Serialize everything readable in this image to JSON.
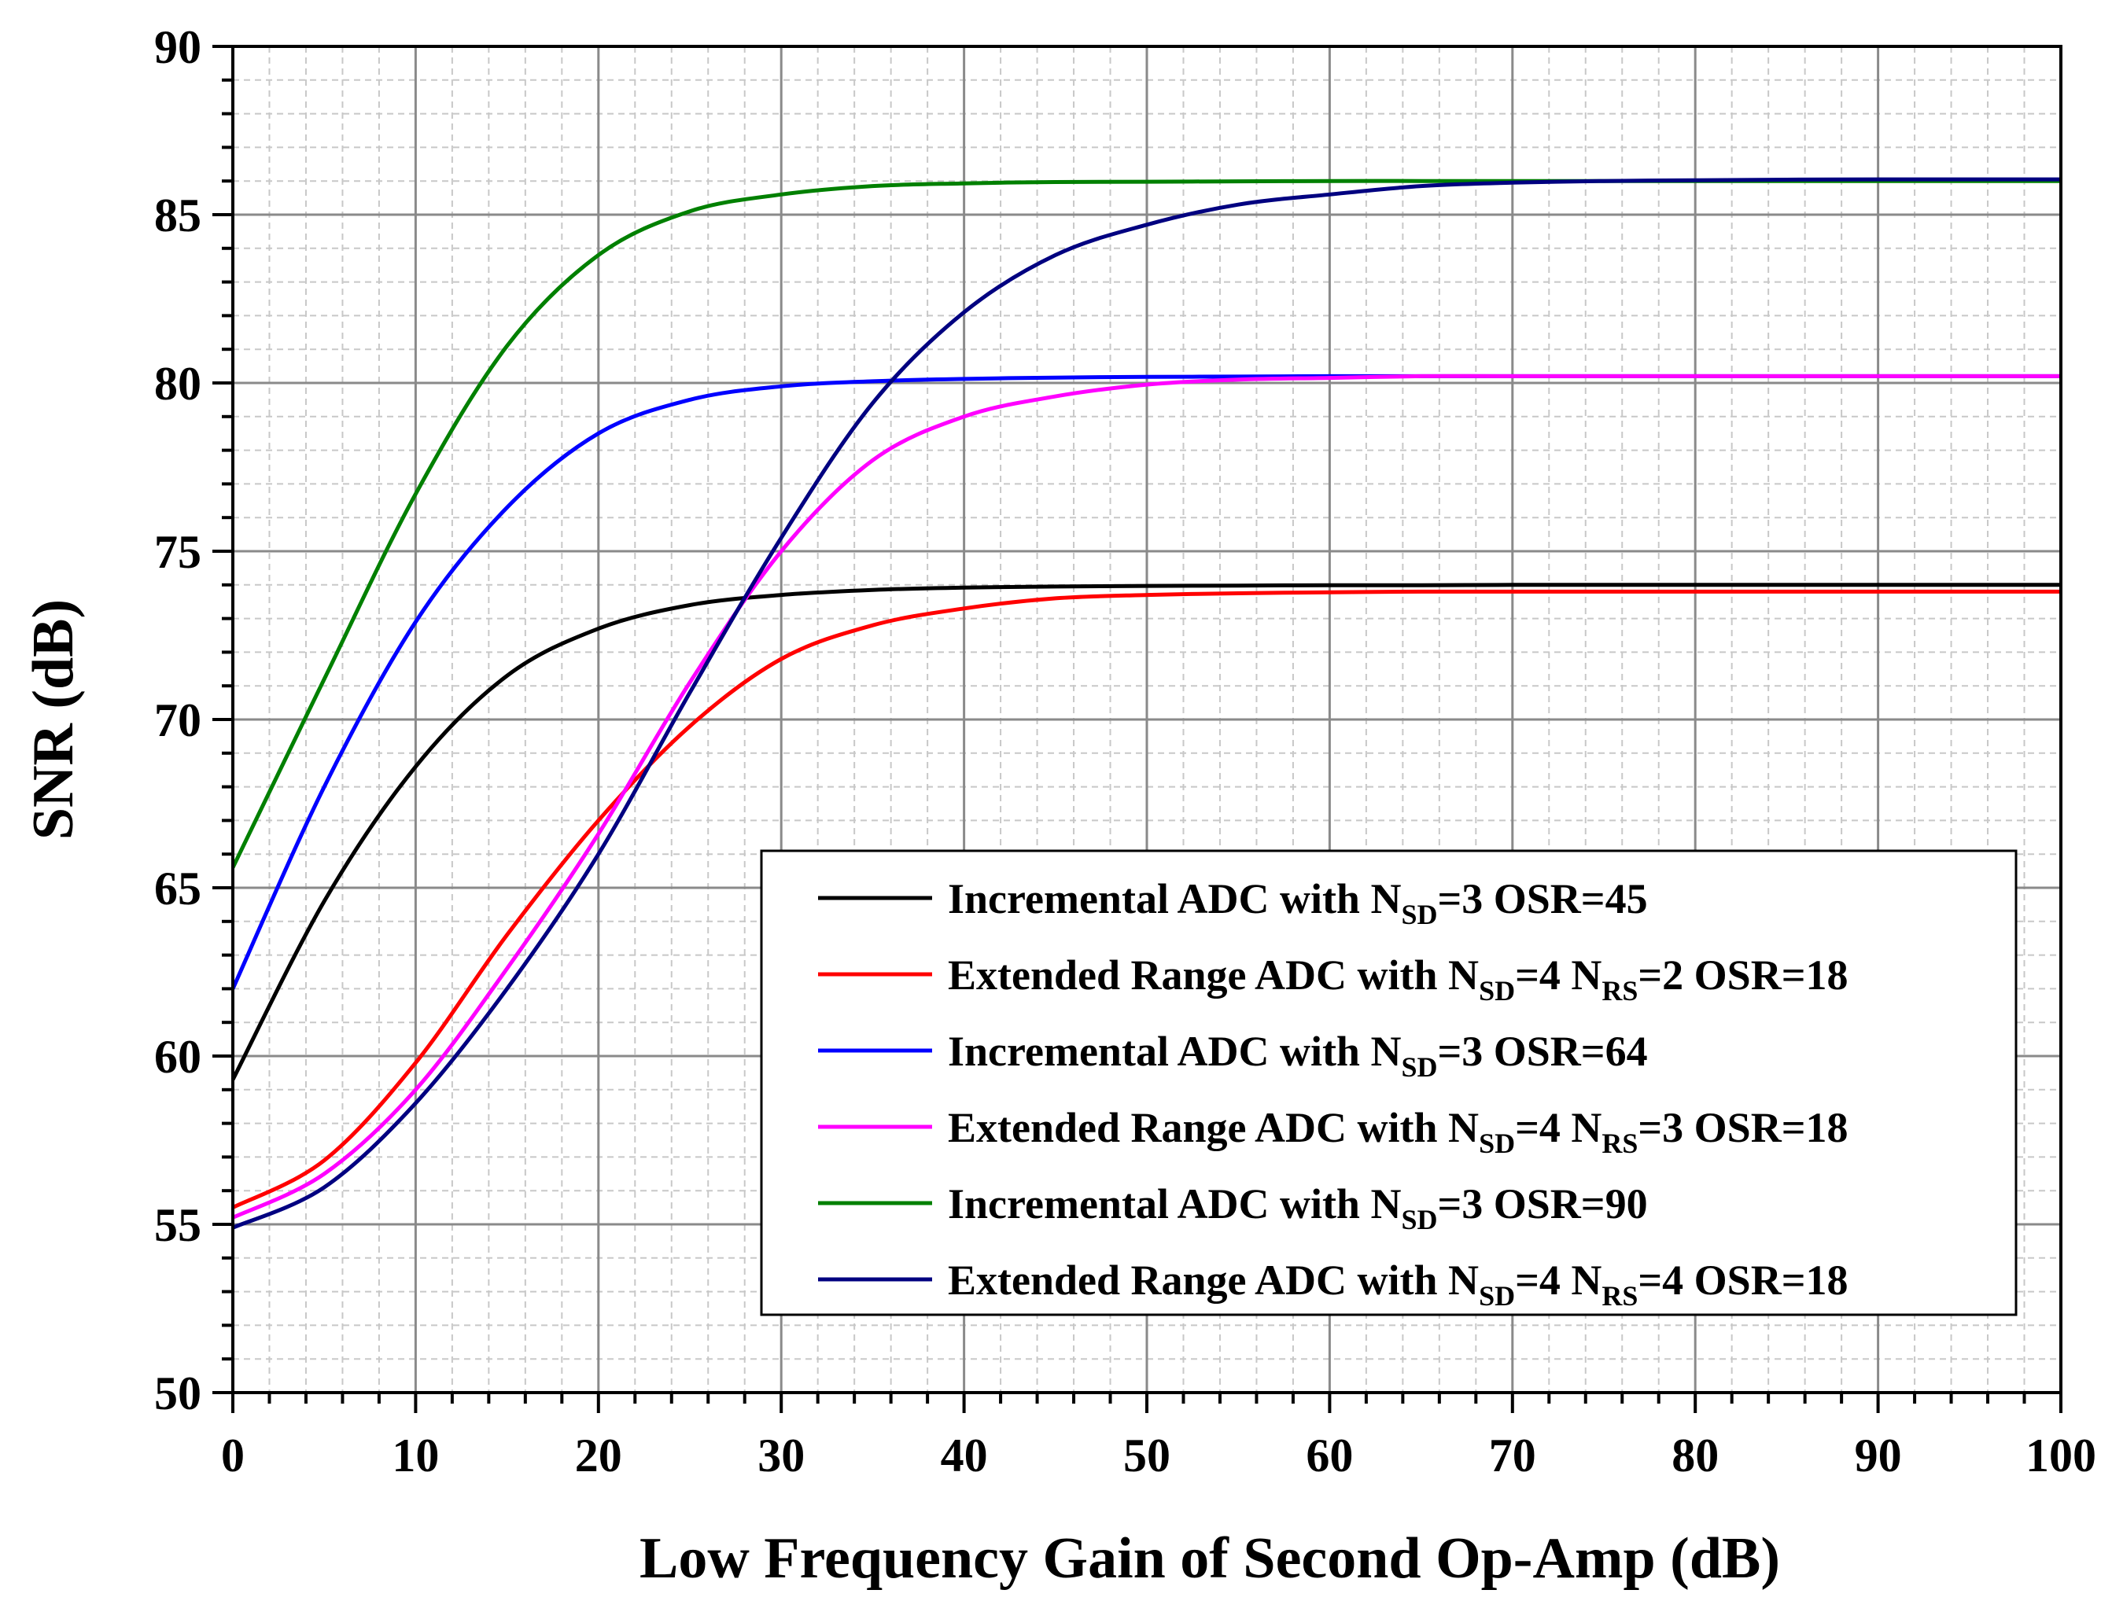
{
  "chart_data": {
    "type": "line",
    "title": "",
    "xlabel": "Low Frequency Gain of Second Op-Amp (dB)",
    "ylabel": "SNR (dB)",
    "xlim": [
      0,
      100
    ],
    "ylim": [
      50,
      90
    ],
    "x_ticks": [
      "0",
      "10",
      "20",
      "30",
      "40",
      "50",
      "60",
      "70",
      "80",
      "90",
      "100"
    ],
    "y_ticks": [
      "50",
      "55",
      "60",
      "65",
      "70",
      "75",
      "80",
      "85",
      "90"
    ],
    "grid": true,
    "legend_position": "lower-right",
    "x": [
      0,
      5,
      10,
      15,
      20,
      25,
      30,
      35,
      40,
      45,
      50,
      55,
      60,
      65,
      70,
      75,
      80,
      85,
      90,
      95,
      100
    ],
    "series": [
      {
        "name_parts": [
          "Incremental ADC with N",
          "SD",
          "=3 OSR=45"
        ],
        "color": "#000000",
        "values": [
          59.3,
          64.6,
          68.6,
          71.3,
          72.7,
          73.4,
          73.7,
          73.85,
          73.92,
          73.95,
          73.97,
          73.98,
          73.99,
          73.99,
          74.0,
          74.0,
          74.0,
          74.0,
          74.0,
          74.0,
          74.0
        ]
      },
      {
        "name_parts": [
          "Extended Range ADC with N",
          "SD",
          "=4 N",
          "RS",
          "=2 OSR=18"
        ],
        "color": "#ff0000",
        "values": [
          55.5,
          56.9,
          59.8,
          63.6,
          67.0,
          69.8,
          71.8,
          72.8,
          73.3,
          73.6,
          73.7,
          73.75,
          73.78,
          73.8,
          73.8,
          73.8,
          73.8,
          73.8,
          73.8,
          73.8,
          73.8
        ]
      },
      {
        "name_parts": [
          "Incremental ADC with N",
          "SD",
          "=3 OSR=64"
        ],
        "color": "#0000ff",
        "values": [
          62.0,
          68.0,
          72.9,
          76.3,
          78.5,
          79.5,
          79.9,
          80.05,
          80.12,
          80.16,
          80.18,
          80.19,
          80.2,
          80.2,
          80.2,
          80.2,
          80.2,
          80.2,
          80.2,
          80.2,
          80.2
        ]
      },
      {
        "name_parts": [
          "Extended Range ADC with N",
          "SD",
          "=4 N",
          "RS",
          "=3 OSR=18"
        ],
        "color": "#ff00ff",
        "values": [
          55.2,
          56.5,
          59.0,
          62.6,
          66.6,
          71.1,
          75.0,
          77.7,
          79.0,
          79.6,
          79.95,
          80.1,
          80.15,
          80.2,
          80.2,
          80.2,
          80.2,
          80.2,
          80.2,
          80.2,
          80.2
        ]
      },
      {
        "name_parts": [
          "Incremental ADC with N",
          "SD",
          "=3 OSR=90"
        ],
        "color": "#008000",
        "values": [
          65.6,
          71.2,
          76.7,
          81.1,
          83.8,
          85.1,
          85.6,
          85.85,
          85.93,
          85.97,
          85.98,
          85.99,
          86.0,
          86.0,
          86.0,
          86.0,
          86.0,
          86.0,
          86.0,
          86.0,
          86.0
        ]
      },
      {
        "name_parts": [
          "Extended Range ADC with N",
          "SD",
          "=4 N",
          "RS",
          "=4 OSR=18"
        ],
        "color": "#000080",
        "values": [
          54.9,
          56.1,
          58.6,
          62.0,
          66.0,
          70.8,
          75.4,
          79.4,
          82.1,
          83.8,
          84.7,
          85.3,
          85.6,
          85.85,
          85.95,
          86.0,
          86.02,
          86.04,
          86.05,
          86.05,
          86.05
        ]
      }
    ]
  }
}
